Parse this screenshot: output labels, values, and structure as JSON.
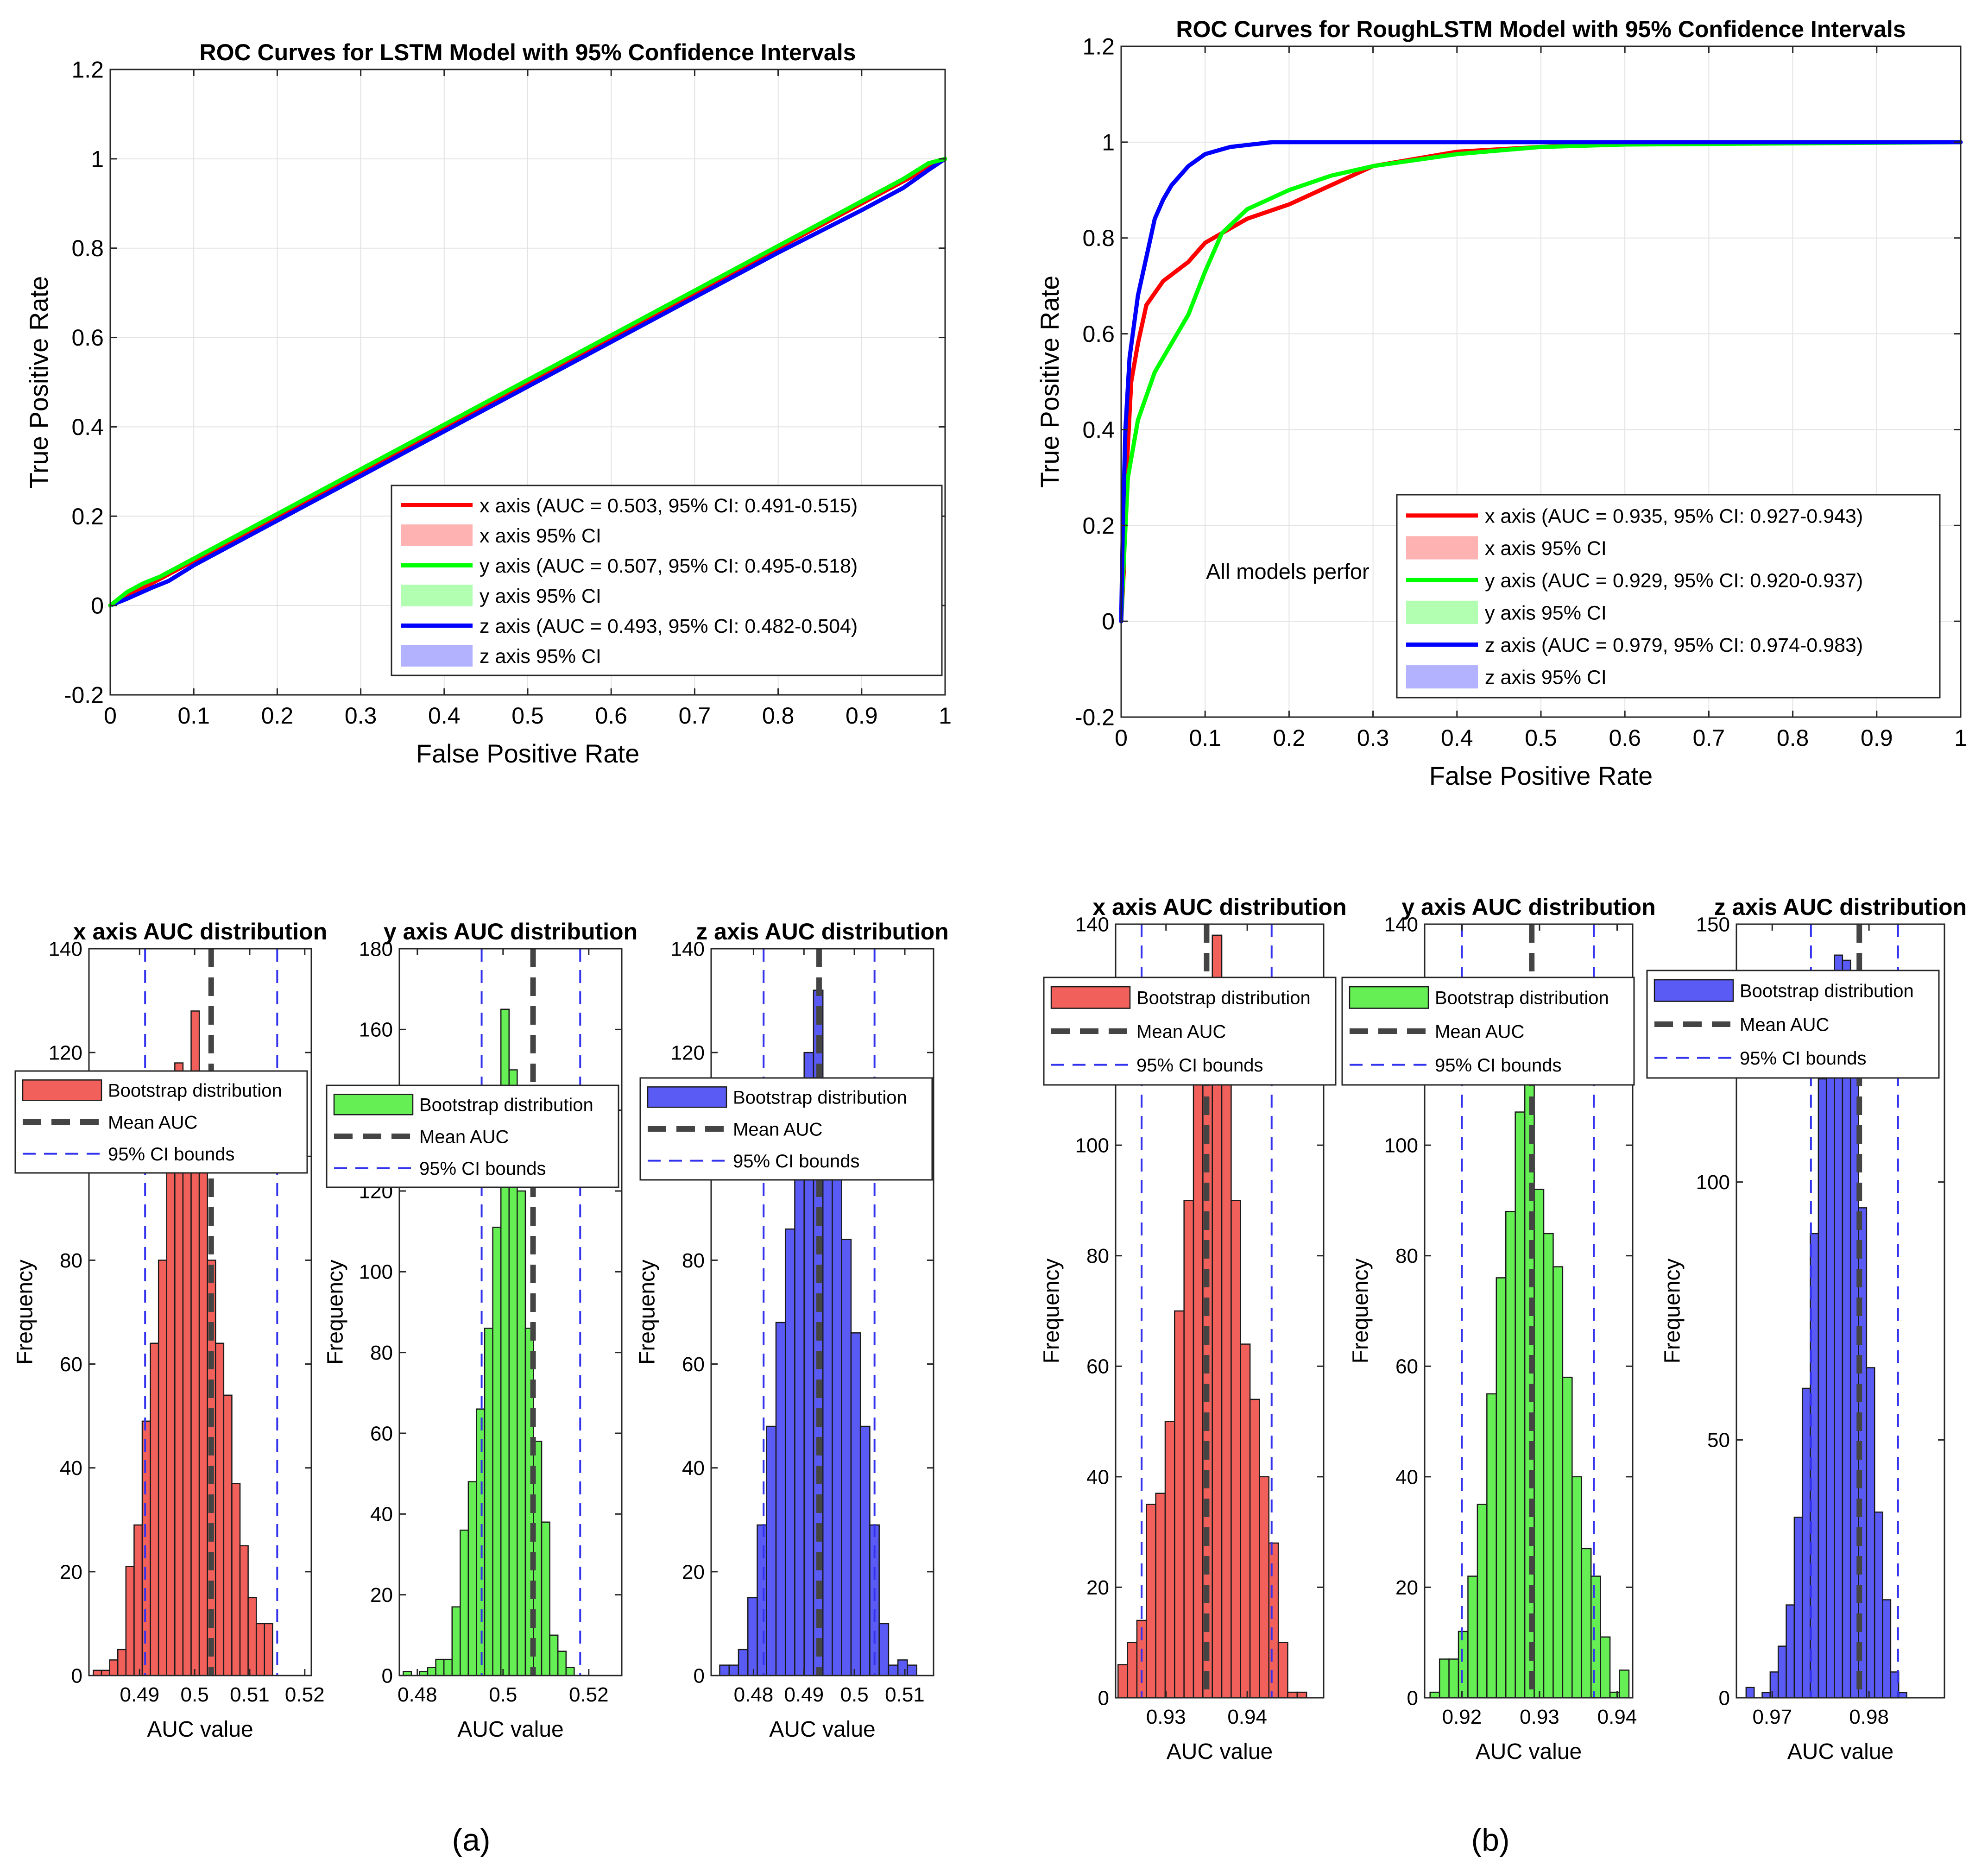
{
  "panel_labels": [
    "(a)",
    "(b)"
  ],
  "chart_data": [
    {
      "id": "roc_lstm",
      "type": "line",
      "title": "ROC Curves for LSTM Model with 95% Confidence Intervals",
      "xlabel": "False Positive Rate",
      "ylabel": "True Positive Rate",
      "xlim": [
        0,
        1
      ],
      "ylim": [
        -0.2,
        1.2
      ],
      "xticks": [
        0,
        0.1,
        0.2,
        0.3,
        0.4,
        0.5,
        0.6,
        0.7,
        0.8,
        0.9,
        1
      ],
      "yticks": [
        -0.2,
        0,
        0.2,
        0.4,
        0.6,
        0.8,
        1,
        1.2
      ],
      "grid": true,
      "legend_position": "bottom-right",
      "legend": [
        "x axis (AUC = 0.503, 95% CI: 0.491-0.515)",
        "x axis 95% CI",
        "y axis (AUC = 0.507, 95% CI: 0.495-0.518)",
        "y axis 95% CI",
        "z axis (AUC = 0.493, 95% CI: 0.482-0.504)",
        "z axis 95% CI"
      ],
      "annotation": "",
      "series": [
        {
          "name": "x axis",
          "color": "#ff0000",
          "points": [
            [
              0,
              0
            ],
            [
              0.02,
              0.025
            ],
            [
              0.05,
              0.05
            ],
            [
              0.1,
              0.1
            ],
            [
              0.2,
              0.2
            ],
            [
              0.3,
              0.3
            ],
            [
              0.4,
              0.4
            ],
            [
              0.5,
              0.5
            ],
            [
              0.6,
              0.6
            ],
            [
              0.7,
              0.7
            ],
            [
              0.8,
              0.8
            ],
            [
              0.9,
              0.9
            ],
            [
              0.95,
              0.95
            ],
            [
              1,
              1
            ]
          ]
        },
        {
          "name": "z axis",
          "color": "#0000ff",
          "points": [
            [
              0,
              0
            ],
            [
              0.02,
              0.015
            ],
            [
              0.05,
              0.04
            ],
            [
              0.07,
              0.055
            ],
            [
              0.1,
              0.09
            ],
            [
              0.2,
              0.19
            ],
            [
              0.3,
              0.29
            ],
            [
              0.4,
              0.39
            ],
            [
              0.5,
              0.49
            ],
            [
              0.6,
              0.59
            ],
            [
              0.7,
              0.69
            ],
            [
              0.8,
              0.79
            ],
            [
              0.9,
              0.885
            ],
            [
              0.95,
              0.935
            ],
            [
              0.98,
              0.975
            ],
            [
              1,
              1
            ]
          ]
        },
        {
          "name": "y axis",
          "color": "#00ff00",
          "points": [
            [
              0,
              0
            ],
            [
              0.02,
              0.03
            ],
            [
              0.04,
              0.05
            ],
            [
              0.06,
              0.065
            ],
            [
              0.1,
              0.105
            ],
            [
              0.2,
              0.205
            ],
            [
              0.3,
              0.305
            ],
            [
              0.4,
              0.405
            ],
            [
              0.5,
              0.505
            ],
            [
              0.6,
              0.605
            ],
            [
              0.7,
              0.705
            ],
            [
              0.8,
              0.805
            ],
            [
              0.9,
              0.905
            ],
            [
              0.95,
              0.955
            ],
            [
              0.98,
              0.99
            ],
            [
              1,
              1
            ]
          ]
        }
      ]
    },
    {
      "id": "roc_roughlstm",
      "type": "line",
      "title": "ROC Curves for RoughLSTM Model with 95% Confidence Intervals",
      "xlabel": "False Positive Rate",
      "ylabel": "True Positive Rate",
      "xlim": [
        0,
        1
      ],
      "ylim": [
        -0.2,
        1.2
      ],
      "xticks": [
        0,
        0.1,
        0.2,
        0.3,
        0.4,
        0.5,
        0.6,
        0.7,
        0.8,
        0.9,
        1
      ],
      "yticks": [
        -0.2,
        0,
        0.2,
        0.4,
        0.6,
        0.8,
        1,
        1.2
      ],
      "grid": true,
      "legend_position": "bottom-right",
      "legend": [
        "x axis (AUC = 0.935, 95% CI: 0.927-0.943)",
        "x axis 95% CI",
        "y axis (AUC = 0.929, 95% CI: 0.920-0.937)",
        "y axis 95% CI",
        "z axis (AUC = 0.979, 95% CI: 0.974-0.983)",
        "z axis 95% CI"
      ],
      "annotation": "All models perfor",
      "series": [
        {
          "name": "x axis",
          "color": "#ff0000",
          "points": [
            [
              0,
              0
            ],
            [
              0.003,
              0.1
            ],
            [
              0.006,
              0.3
            ],
            [
              0.012,
              0.5
            ],
            [
              0.02,
              0.58
            ],
            [
              0.03,
              0.66
            ],
            [
              0.05,
              0.71
            ],
            [
              0.08,
              0.75
            ],
            [
              0.1,
              0.79
            ],
            [
              0.15,
              0.84
            ],
            [
              0.2,
              0.87
            ],
            [
              0.25,
              0.91
            ],
            [
              0.3,
              0.95
            ],
            [
              0.4,
              0.98
            ],
            [
              0.5,
              0.99
            ],
            [
              0.6,
              1
            ],
            [
              1,
              1
            ]
          ]
        },
        {
          "name": "y axis",
          "color": "#00ff00",
          "points": [
            [
              0,
              0
            ],
            [
              0.003,
              0.12
            ],
            [
              0.008,
              0.3
            ],
            [
              0.02,
              0.42
            ],
            [
              0.04,
              0.52
            ],
            [
              0.06,
              0.58
            ],
            [
              0.08,
              0.64
            ],
            [
              0.1,
              0.73
            ],
            [
              0.12,
              0.81
            ],
            [
              0.15,
              0.86
            ],
            [
              0.2,
              0.9
            ],
            [
              0.25,
              0.93
            ],
            [
              0.3,
              0.95
            ],
            [
              0.4,
              0.975
            ],
            [
              0.5,
              0.99
            ],
            [
              0.6,
              0.995
            ],
            [
              1,
              1
            ]
          ]
        },
        {
          "name": "z axis",
          "color": "#0000ff",
          "points": [
            [
              0,
              0
            ],
            [
              0.002,
              0.2
            ],
            [
              0.005,
              0.4
            ],
            [
              0.01,
              0.55
            ],
            [
              0.02,
              0.68
            ],
            [
              0.03,
              0.76
            ],
            [
              0.04,
              0.84
            ],
            [
              0.05,
              0.88
            ],
            [
              0.06,
              0.91
            ],
            [
              0.08,
              0.95
            ],
            [
              0.1,
              0.975
            ],
            [
              0.13,
              0.99
            ],
            [
              0.18,
              1
            ],
            [
              1,
              1
            ]
          ]
        }
      ]
    },
    {
      "id": "hist_lstm_x",
      "type": "bar",
      "subtype": "histogram",
      "title": "x axis AUC distribution",
      "xlabel": "AUC value",
      "ylabel": "Frequency",
      "color": "#f2605c",
      "xlim": [
        0.4808,
        0.5212
      ],
      "ylim": [
        0,
        140
      ],
      "xticks": [
        0.49,
        0.5,
        0.51,
        0.52
      ],
      "xtick_labels": [
        "0.49",
        "0.5",
        "0.51",
        "0.52"
      ],
      "yticks": [
        0,
        20,
        40,
        60,
        80,
        100,
        120,
        140
      ],
      "bin_start": 0.4816,
      "bin_width": 0.00148,
      "counts": [
        1,
        1,
        3,
        5,
        21,
        29,
        49,
        64,
        80,
        100,
        118,
        105,
        128,
        98,
        80,
        64,
        54,
        37,
        25,
        15,
        10,
        10
      ],
      "mean": 0.503,
      "ci": [
        0.491,
        0.515
      ],
      "legend_position": "top-left",
      "legend": [
        "Bootstrap distribution",
        "Mean AUC",
        "95% CI bounds"
      ]
    },
    {
      "id": "hist_lstm_y",
      "type": "bar",
      "subtype": "histogram",
      "title": "y axis AUC distribution",
      "xlabel": "AUC value",
      "ylabel": "Frequency",
      "color": "#66ee55",
      "xlim": [
        0.4758,
        0.5277
      ],
      "ylim": [
        0,
        180
      ],
      "xticks": [
        0.48,
        0.5,
        0.52
      ],
      "xtick_labels": [
        "0.48",
        "0.5",
        "0.52"
      ],
      "yticks": [
        0,
        20,
        40,
        60,
        80,
        100,
        120,
        140,
        160,
        180
      ],
      "bin_start": 0.4767,
      "bin_width": 0.0019,
      "counts": [
        1,
        0,
        1,
        2,
        4,
        4,
        17,
        36,
        48,
        66,
        86,
        111,
        165,
        150,
        120,
        86,
        58,
        38,
        10,
        6,
        2
      ],
      "mean": 0.507,
      "ci": [
        0.495,
        0.518
      ],
      "legend_position": "top-left",
      "legend": [
        "Bootstrap distribution",
        "Mean AUC",
        "95% CI bounds"
      ]
    },
    {
      "id": "hist_lstm_z",
      "type": "bar",
      "subtype": "histogram",
      "title": "z axis AUC distribution",
      "xlabel": "AUC value",
      "ylabel": "Frequency",
      "color": "#5a5af5",
      "xlim": [
        0.4716,
        0.5157
      ],
      "ylim": [
        0,
        140
      ],
      "xticks": [
        0.48,
        0.49,
        0.5,
        0.51
      ],
      "xtick_labels": [
        "0.48",
        "0.49",
        "0.5",
        "0.51"
      ],
      "yticks": [
        0,
        20,
        40,
        60,
        80,
        100,
        120,
        140
      ],
      "bin_start": 0.4733,
      "bin_width": 0.00186,
      "counts": [
        2,
        2,
        5,
        15,
        29,
        48,
        68,
        86,
        108,
        120,
        132,
        108,
        98,
        84,
        66,
        48,
        29,
        10,
        2,
        3,
        2
      ],
      "mean": 0.493,
      "ci": [
        0.482,
        0.504
      ],
      "legend_position": "top-left",
      "legend": [
        "Bootstrap distribution",
        "Mean AUC",
        "95% CI bounds"
      ]
    },
    {
      "id": "hist_rough_x",
      "type": "bar",
      "subtype": "histogram",
      "title": "x axis AUC distribution",
      "xlabel": "AUC value",
      "ylabel": "Frequency",
      "color": "#f2605c",
      "xlim": [
        0.9238,
        0.9494
      ],
      "ylim": [
        0,
        140
      ],
      "xticks": [
        0.93,
        0.94
      ],
      "xtick_labels": [
        "0.93",
        "0.94"
      ],
      "yticks": [
        0,
        20,
        40,
        60,
        80,
        100,
        120,
        140
      ],
      "bin_start": 0.9241,
      "bin_width": 0.00116,
      "counts": [
        6,
        10,
        14,
        35,
        37,
        50,
        70,
        90,
        112,
        126,
        138,
        118,
        90,
        64,
        54,
        40,
        28,
        10,
        1,
        1
      ],
      "mean": 0.935,
      "ci": [
        0.927,
        0.943
      ],
      "legend_position": "top-left",
      "legend": [
        "Bootstrap distribution",
        "Mean AUC",
        "95% CI bounds"
      ]
    },
    {
      "id": "hist_rough_y",
      "type": "bar",
      "subtype": "histogram",
      "title": "y axis AUC distribution",
      "xlabel": "AUC value",
      "ylabel": "Frequency",
      "color": "#66ee55",
      "xlim": [
        0.9152,
        0.942
      ],
      "ylim": [
        0,
        140
      ],
      "xticks": [
        0.92,
        0.93,
        0.94
      ],
      "xtick_labels": [
        "0.92",
        "0.93",
        "0.94"
      ],
      "yticks": [
        0,
        20,
        40,
        60,
        80,
        100,
        120,
        140
      ],
      "bin_start": 0.9159,
      "bin_width": 0.00122,
      "counts": [
        1,
        7,
        7,
        12,
        22,
        35,
        55,
        76,
        88,
        106,
        112,
        92,
        84,
        78,
        58,
        40,
        27,
        22,
        11,
        1,
        5
      ],
      "mean": 0.929,
      "ci": [
        0.92,
        0.937
      ],
      "legend_position": "top-left",
      "legend": [
        "Bootstrap distribution",
        "Mean AUC",
        "95% CI bounds"
      ]
    },
    {
      "id": "hist_rough_z",
      "type": "bar",
      "subtype": "histogram",
      "title": "z axis AUC distribution",
      "xlabel": "AUC value",
      "ylabel": "Frequency",
      "color": "#5a5af5",
      "xlim": [
        0.9663,
        0.9878
      ],
      "ylim": [
        0,
        150
      ],
      "xticks": [
        0.97,
        0.98
      ],
      "xtick_labels": [
        "0.97",
        "0.98"
      ],
      "yticks": [
        0,
        50,
        100,
        150
      ],
      "bin_start": 0.9673,
      "bin_width": 0.00083,
      "counts": [
        2,
        0,
        1,
        5,
        10,
        18,
        35,
        60,
        90,
        120,
        130,
        144,
        143,
        130,
        95,
        64,
        36,
        19,
        5,
        1
      ],
      "mean": 0.979,
      "ci": [
        0.974,
        0.983
      ],
      "legend_position": "top-left",
      "legend": [
        "Bootstrap distribution",
        "Mean AUC",
        "95% CI bounds"
      ]
    }
  ]
}
